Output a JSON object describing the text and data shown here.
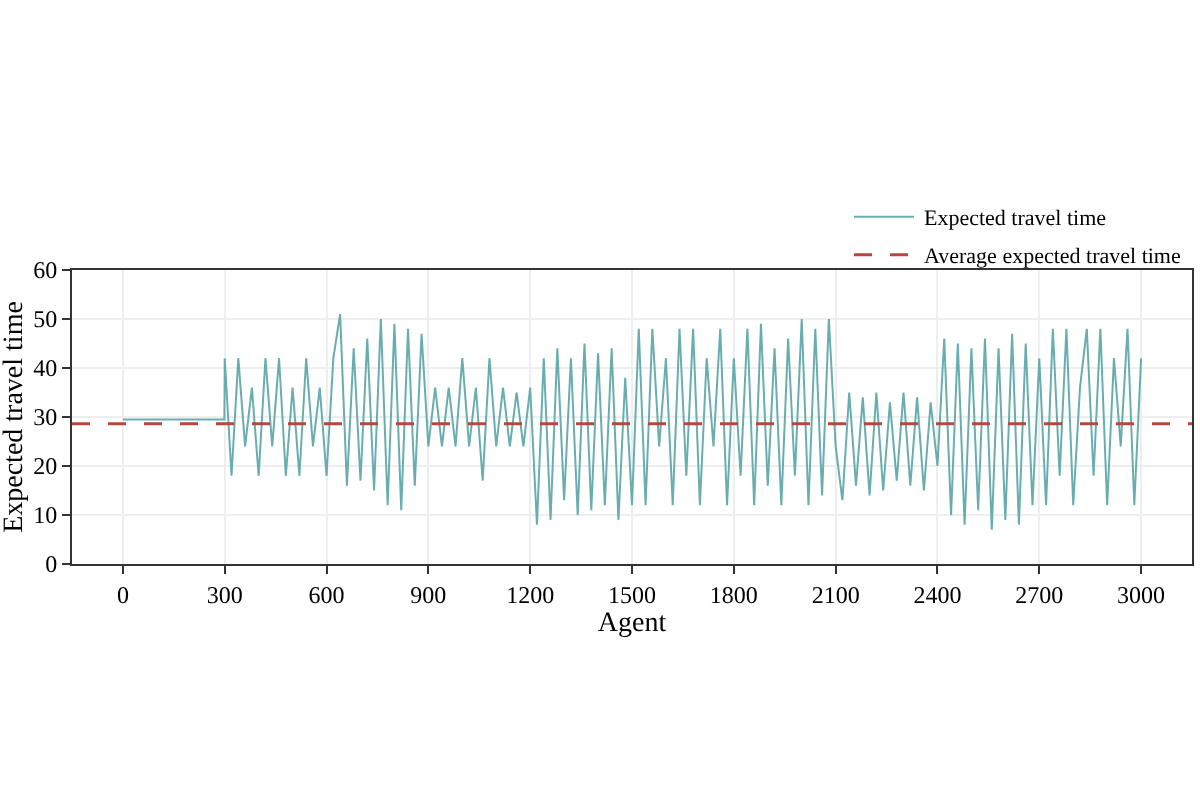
{
  "chart_data": {
    "type": "line",
    "xlabel": "Agent",
    "ylabel": "Expected travel time",
    "series": [
      {
        "name": "Expected travel time",
        "color": "#5aa5a6",
        "x": [
          0,
          299,
          300,
          320,
          340,
          360,
          380,
          400,
          420,
          440,
          460,
          480,
          500,
          520,
          540,
          560,
          580,
          600,
          620,
          640,
          660,
          680,
          700,
          720,
          740,
          760,
          780,
          800,
          820,
          840,
          860,
          880,
          900,
          920,
          940,
          960,
          980,
          1000,
          1020,
          1040,
          1060,
          1080,
          1100,
          1120,
          1140,
          1160,
          1180,
          1200,
          1220,
          1240,
          1260,
          1280,
          1300,
          1320,
          1340,
          1360,
          1380,
          1400,
          1420,
          1440,
          1460,
          1480,
          1500,
          1520,
          1540,
          1560,
          1580,
          1600,
          1620,
          1640,
          1660,
          1680,
          1700,
          1720,
          1740,
          1760,
          1780,
          1800,
          1820,
          1840,
          1860,
          1880,
          1900,
          1920,
          1940,
          1960,
          1980,
          2000,
          2020,
          2040,
          2060,
          2080,
          2100,
          2120,
          2140,
          2160,
          2180,
          2200,
          2220,
          2240,
          2260,
          2280,
          2300,
          2320,
          2340,
          2360,
          2380,
          2400,
          2420,
          2440,
          2460,
          2480,
          2500,
          2520,
          2540,
          2560,
          2580,
          2600,
          2620,
          2640,
          2660,
          2680,
          2700,
          2720,
          2740,
          2760,
          2780,
          2800,
          2820,
          2840,
          2860,
          2880,
          2900,
          2920,
          2940,
          2960,
          2980,
          3000
        ],
        "values": [
          29.5,
          29.5,
          42,
          18,
          42,
          24,
          36,
          18,
          42,
          24,
          42,
          18,
          36,
          18,
          42,
          24,
          36,
          18,
          42,
          51,
          16,
          44,
          17,
          46,
          15,
          50,
          12,
          49,
          11,
          48,
          16,
          47,
          24,
          36,
          24,
          36,
          24,
          42,
          24,
          36,
          17,
          42,
          24,
          36,
          24,
          35,
          24,
          36,
          8,
          42,
          9,
          44,
          13,
          42,
          10,
          45,
          11,
          43,
          12,
          44,
          9,
          38,
          12,
          48,
          12,
          48,
          24,
          42,
          12,
          48,
          18,
          48,
          12,
          42,
          24,
          48,
          12,
          42,
          18,
          48,
          12,
          49,
          16,
          44,
          12,
          46,
          18,
          50,
          12,
          48,
          14,
          50,
          24,
          13,
          35,
          16,
          34,
          14,
          35,
          15,
          33,
          17,
          35,
          16,
          34,
          15,
          33,
          20,
          46,
          10,
          45,
          8,
          44,
          11,
          46,
          7,
          44,
          9,
          47,
          8,
          45,
          12,
          42,
          12,
          48,
          18,
          48,
          12,
          36,
          48,
          18,
          48,
          12,
          42,
          24,
          48,
          12,
          42
        ]
      }
    ],
    "ref_lines": [
      {
        "axis": "y",
        "value": 28.6,
        "label": "Average expected travel time",
        "color": "#b5473c",
        "line_style": "dashed"
      }
    ],
    "xlim": [
      -150,
      3150
    ],
    "xticks": [
      0,
      300,
      600,
      900,
      1200,
      1500,
      1800,
      2100,
      2400,
      2700,
      3000
    ],
    "ylim": [
      0,
      60
    ],
    "yticks": [
      0,
      10,
      20,
      30,
      40,
      50,
      60
    ],
    "grid": true,
    "legend": "top right",
    "marker": "none",
    "line_style": "solid"
  }
}
